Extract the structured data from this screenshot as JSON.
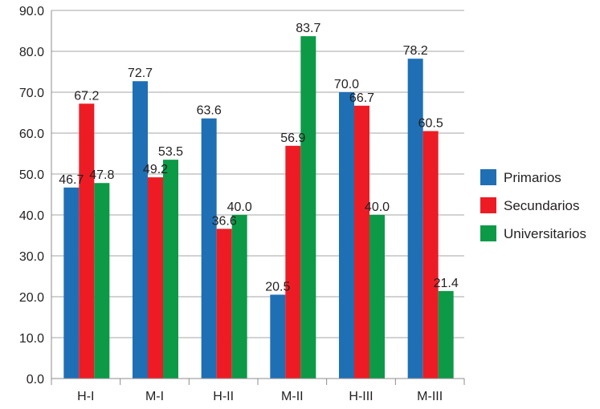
{
  "chart_data": {
    "type": "bar",
    "categories": [
      "H-I",
      "M-I",
      "H-II",
      "M-II",
      "H-III",
      "M-III"
    ],
    "series": [
      {
        "name": "Primarios",
        "color": "#1f6fb5",
        "values": [
          46.7,
          72.7,
          63.6,
          20.5,
          70.0,
          78.2
        ],
        "labels": [
          "46.7",
          "72.7",
          "63.6",
          "20.5",
          "70.0",
          "78.2"
        ]
      },
      {
        "name": "Secundarios",
        "color": "#ed1c24",
        "values": [
          67.2,
          49.2,
          36.6,
          56.9,
          66.7,
          60.5
        ],
        "labels": [
          "67.2",
          "49.2",
          "36.6",
          "56.9",
          "66.7",
          "60.5"
        ]
      },
      {
        "name": "Universitarios",
        "color": "#0c9a47",
        "values": [
          47.8,
          53.5,
          40.0,
          83.7,
          40.0,
          21.4
        ],
        "labels": [
          "47.8",
          "53.5",
          "40.0",
          "83.7",
          "40.0",
          "21.4"
        ]
      }
    ],
    "yticks": [
      "0.0",
      "10.0",
      "20.0",
      "30.0",
      "40.0",
      "50.0",
      "60.0",
      "70.0",
      "80.0",
      "90.0"
    ],
    "ylim": [
      0,
      90
    ],
    "grid": true,
    "legend_position": "right",
    "title": "",
    "xlabel": "",
    "ylabel": ""
  }
}
